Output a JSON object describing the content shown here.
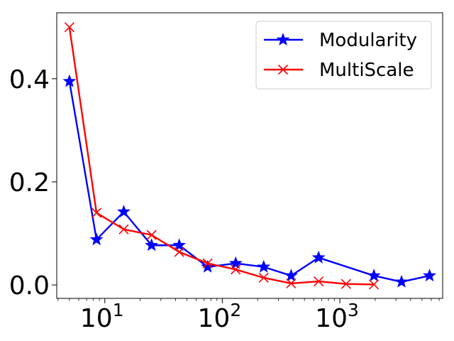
{
  "chart_data": {
    "type": "line",
    "x_scale": "log",
    "xlim": [
      3.9,
      7500
    ],
    "ylim": [
      -0.026,
      0.528
    ],
    "x_ticks": [
      {
        "value": 10,
        "base": "10",
        "exp": "1"
      },
      {
        "value": 100,
        "base": "10",
        "exp": "2"
      },
      {
        "value": 1000,
        "base": "10",
        "exp": "3"
      }
    ],
    "y_ticks": [
      {
        "value": 0.0,
        "label": "0.0"
      },
      {
        "value": 0.2,
        "label": "0.2"
      },
      {
        "value": 0.4,
        "label": "0.4"
      }
    ],
    "grid": false,
    "legend_position": "top-right",
    "series": [
      {
        "name": "Modularity",
        "color": "#0000ff",
        "marker": "star",
        "x": [
          5,
          8.5,
          14.5,
          25,
          43,
          75,
          130,
          225,
          385,
          660,
          1950,
          3350,
          5800
        ],
        "y": [
          0.395,
          0.088,
          0.142,
          0.077,
          0.077,
          0.035,
          0.042,
          0.035,
          0.018,
          0.053,
          0.018,
          0.006,
          0.018
        ]
      },
      {
        "name": "MultiScale",
        "color": "#ff0000",
        "marker": "x",
        "x": [
          5,
          8.5,
          14.5,
          25,
          43,
          75,
          130,
          225,
          385,
          660,
          1130,
          1950
        ],
        "y": [
          0.5,
          0.14,
          0.108,
          0.097,
          0.064,
          0.042,
          0.03,
          0.014,
          0.003,
          0.007,
          0.002,
          0.001
        ]
      }
    ]
  }
}
